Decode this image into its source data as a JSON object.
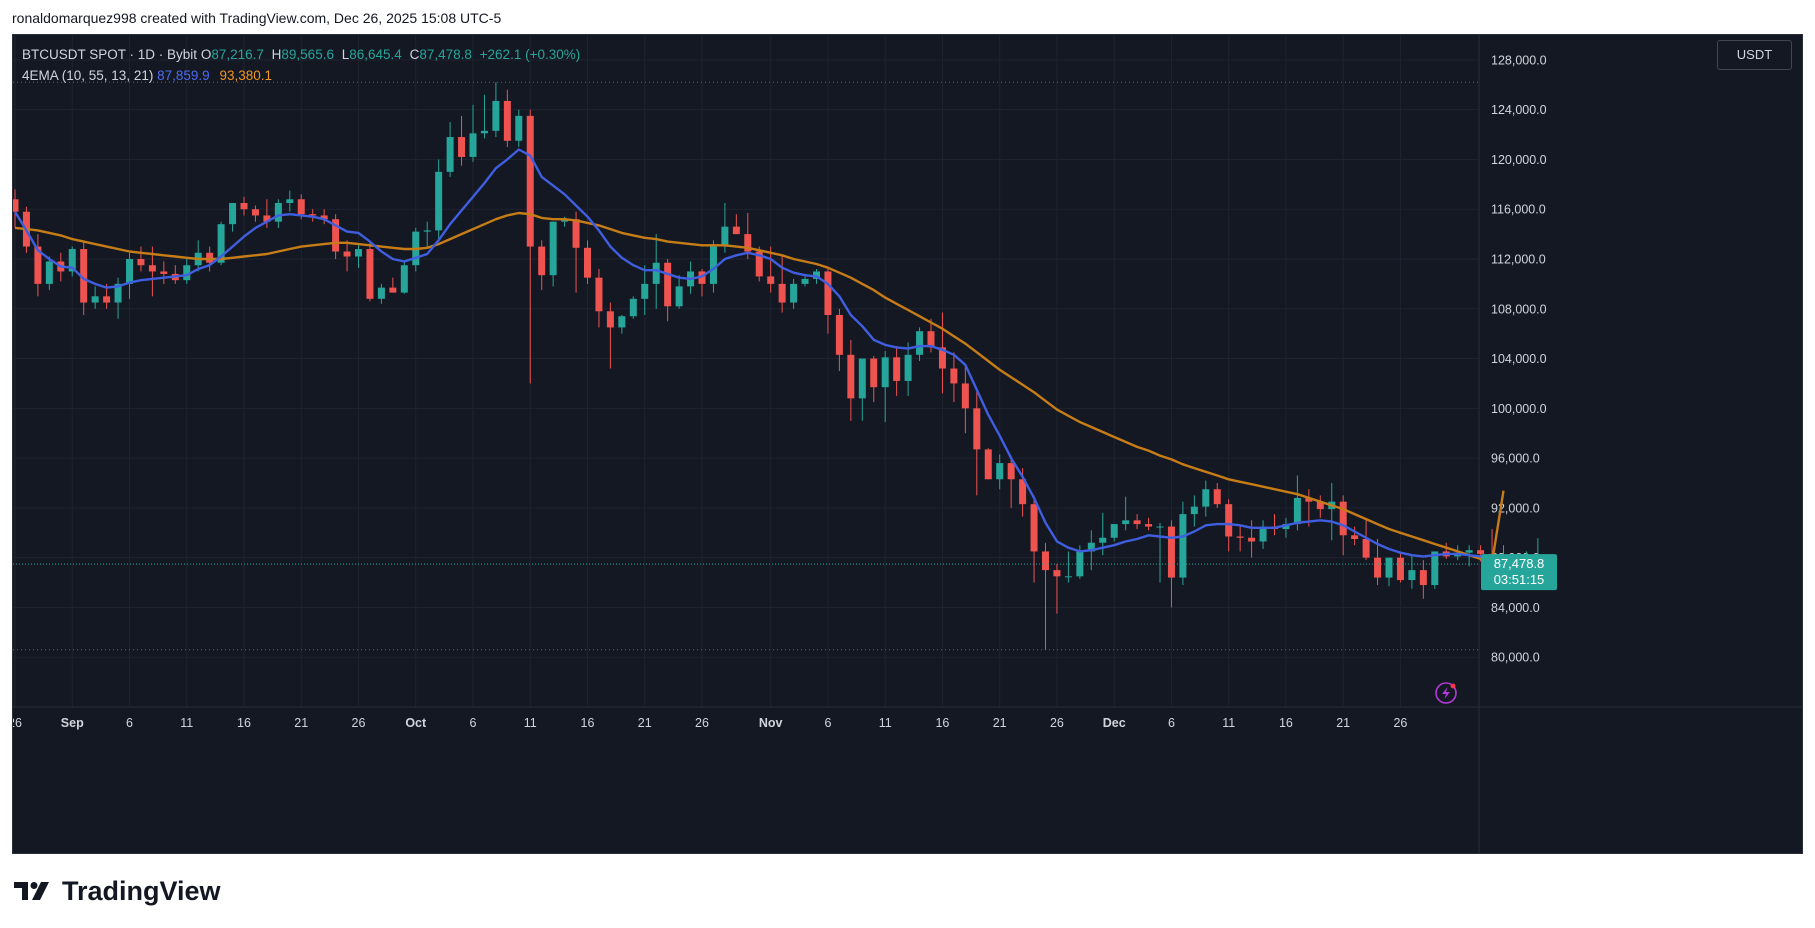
{
  "credit": "ronaldomarquez998 created with TradingView.com, Dec 26, 2025 15:08 UTC-5",
  "legend": {
    "symbol": "BTCUSDT SPOT · 1D · Bybit",
    "o_label": "O",
    "o_value": "87,216.7",
    "h_label": "H",
    "h_value": "89,565.6",
    "l_label": "L",
    "l_value": "86,645.4",
    "c_label": "C",
    "c_value": "87,478.8",
    "change": "+262.1 (+0.30%)",
    "indicator": "4EMA (10, 55, 13, 21)",
    "ema10_value": "87,859.9",
    "ema55_value": "93,380.1"
  },
  "currency_button": "USDT",
  "price_label": {
    "price": "87,478.8",
    "countdown": "03:51:15"
  },
  "brand": {
    "name": "TradingView"
  },
  "colors": {
    "background": "#141823",
    "grid": "#1f2330",
    "up": "#26a69a",
    "down": "#ef5350",
    "ema_fast": "#3f5ee0",
    "ema_slow": "#c77d17",
    "axis_text": "#d1d4dc"
  },
  "chart_data": {
    "type": "candlestick",
    "y_axis_ticks": [
      "80,000.0",
      "84,000.0",
      "88,000.0",
      "92,000.0",
      "96,000.0",
      "100,000.0",
      "104,000.0",
      "108,000.0",
      "112,000.0",
      "116,000.0",
      "120,000.0",
      "124,000.0",
      "128,000.0"
    ],
    "x_axis_ticks": [
      {
        "label": "26",
        "bar": 0,
        "month": false
      },
      {
        "label": "Sep",
        "bar": 5,
        "month": true
      },
      {
        "label": "6",
        "bar": 10,
        "month": false
      },
      {
        "label": "11",
        "bar": 15,
        "month": false
      },
      {
        "label": "16",
        "bar": 20,
        "month": false
      },
      {
        "label": "21",
        "bar": 25,
        "month": false
      },
      {
        "label": "26",
        "bar": 30,
        "month": false
      },
      {
        "label": "Oct",
        "bar": 35,
        "month": true
      },
      {
        "label": "6",
        "bar": 40,
        "month": false
      },
      {
        "label": "11",
        "bar": 45,
        "month": false
      },
      {
        "label": "16",
        "bar": 50,
        "month": false
      },
      {
        "label": "21",
        "bar": 55,
        "month": false
      },
      {
        "label": "26",
        "bar": 60,
        "month": false
      },
      {
        "label": "Nov",
        "bar": 66,
        "month": true
      },
      {
        "label": "6",
        "bar": 71,
        "month": false
      },
      {
        "label": "11",
        "bar": 76,
        "month": false
      },
      {
        "label": "16",
        "bar": 81,
        "month": false
      },
      {
        "label": "21",
        "bar": 86,
        "month": false
      },
      {
        "label": "26",
        "bar": 91,
        "month": false
      },
      {
        "label": "Dec",
        "bar": 96,
        "month": true
      },
      {
        "label": "6",
        "bar": 101,
        "month": false
      },
      {
        "label": "11",
        "bar": 106,
        "month": false
      },
      {
        "label": "16",
        "bar": 111,
        "month": false
      },
      {
        "label": "21",
        "bar": 116,
        "month": false
      },
      {
        "label": "26",
        "bar": 121,
        "month": false
      }
    ],
    "ylim": [
      76000,
      130000
    ],
    "last_price": 87478.8,
    "dotted_high": 126200,
    "dotted_low": 80600,
    "candles": [
      [
        116800,
        117600,
        114500,
        115800
      ],
      [
        115800,
        116200,
        112500,
        113000
      ],
      [
        113000,
        114000,
        109000,
        110000
      ],
      [
        110000,
        112200,
        109500,
        111800
      ],
      [
        111800,
        112500,
        110200,
        111000
      ],
      [
        111000,
        113000,
        110600,
        112800
      ],
      [
        112800,
        113500,
        107500,
        108500
      ],
      [
        108500,
        109800,
        108000,
        109000
      ],
      [
        109000,
        110000,
        108000,
        108500
      ],
      [
        108500,
        110500,
        107200,
        110000
      ],
      [
        110000,
        112500,
        108800,
        112000
      ],
      [
        112000,
        113000,
        111000,
        111500
      ],
      [
        111500,
        113000,
        109000,
        111000
      ],
      [
        111000,
        111800,
        110000,
        110800
      ],
      [
        110800,
        111500,
        110000,
        110300
      ],
      [
        110300,
        112000,
        110000,
        111500
      ],
      [
        111500,
        113500,
        111000,
        112500
      ],
      [
        112500,
        113000,
        111000,
        111700
      ],
      [
        111700,
        115000,
        111500,
        114800
      ],
      [
        114800,
        116500,
        114200,
        116500
      ],
      [
        116500,
        117000,
        115500,
        116000
      ],
      [
        116000,
        116300,
        115000,
        115500
      ],
      [
        115500,
        116800,
        114500,
        115000
      ],
      [
        115000,
        116800,
        114500,
        116500
      ],
      [
        116500,
        117500,
        115800,
        116800
      ],
      [
        116800,
        117200,
        115200,
        115600
      ],
      [
        115600,
        116000,
        115000,
        115500
      ],
      [
        115500,
        116000,
        114800,
        115200
      ],
      [
        115200,
        115600,
        112000,
        112600
      ],
      [
        112600,
        113500,
        111000,
        112200
      ],
      [
        112200,
        113200,
        111300,
        112800
      ],
      [
        112800,
        113500,
        108600,
        108800
      ],
      [
        108800,
        110000,
        108400,
        109700
      ],
      [
        109700,
        110500,
        109300,
        109300
      ],
      [
        109300,
        111800,
        109200,
        111500
      ],
      [
        111500,
        114500,
        111000,
        114200
      ],
      [
        114200,
        115000,
        113000,
        114300
      ],
      [
        114300,
        120000,
        113500,
        119000
      ],
      [
        119000,
        123000,
        118600,
        121800
      ],
      [
        121800,
        123500,
        119500,
        120200
      ],
      [
        120200,
        124400,
        119800,
        122100
      ],
      [
        122100,
        125200,
        121700,
        122300
      ],
      [
        122300,
        126200,
        121800,
        124700
      ],
      [
        124700,
        125600,
        121000,
        121500
      ],
      [
        121500,
        124000,
        121000,
        123500
      ],
      [
        123500,
        124000,
        102000,
        113000
      ],
      [
        113000,
        113500,
        109500,
        110700
      ],
      [
        110700,
        115000,
        109800,
        115000
      ],
      [
        115000,
        115400,
        114600,
        115200
      ],
      [
        115200,
        115800,
        109300,
        112900
      ],
      [
        112900,
        113500,
        110000,
        110500
      ],
      [
        110500,
        111200,
        106500,
        107800
      ],
      [
        107800,
        108500,
        103200,
        106500
      ],
      [
        106500,
        107500,
        106000,
        107400
      ],
      [
        107400,
        109000,
        107200,
        108800
      ],
      [
        108800,
        111500,
        107500,
        110000
      ],
      [
        110000,
        114000,
        108000,
        111700
      ],
      [
        111700,
        112000,
        107000,
        108200
      ],
      [
        108200,
        110700,
        108000,
        109800
      ],
      [
        109800,
        111800,
        109200,
        111000
      ],
      [
        111000,
        111200,
        109000,
        110000
      ],
      [
        110000,
        113500,
        109300,
        113000
      ],
      [
        113000,
        116500,
        112500,
        114600
      ],
      [
        114600,
        115600,
        114000,
        114000
      ],
      [
        114000,
        115700,
        112000,
        112600
      ],
      [
        112600,
        113000,
        110200,
        110600
      ],
      [
        110600,
        113000,
        109300,
        110000
      ],
      [
        110000,
        112300,
        107700,
        108500
      ],
      [
        108500,
        110400,
        108000,
        110000
      ],
      [
        110000,
        110800,
        109800,
        110400
      ],
      [
        110400,
        111200,
        110000,
        111000
      ],
      [
        111000,
        111200,
        106000,
        107500
      ],
      [
        107500,
        108000,
        103000,
        104300
      ],
      [
        104300,
        105500,
        99000,
        100800
      ],
      [
        100800,
        104000,
        99000,
        104000
      ],
      [
        104000,
        104200,
        100500,
        101700
      ],
      [
        101700,
        104600,
        98900,
        104100
      ],
      [
        104100,
        105000,
        101000,
        102200
      ],
      [
        102200,
        105300,
        101000,
        104300
      ],
      [
        104300,
        106500,
        103800,
        106200
      ],
      [
        106200,
        107200,
        104500,
        104900
      ],
      [
        104900,
        107700,
        101200,
        103200
      ],
      [
        103200,
        104500,
        100500,
        102000
      ],
      [
        102000,
        103500,
        98000,
        100000
      ],
      [
        100000,
        101500,
        93000,
        96700
      ],
      [
        96700,
        96800,
        94300,
        94300
      ],
      [
        94300,
        96300,
        93500,
        95600
      ],
      [
        95600,
        96200,
        92000,
        94300
      ],
      [
        94300,
        95200,
        91300,
        92300
      ],
      [
        92300,
        93000,
        86000,
        88500
      ],
      [
        88500,
        89200,
        80600,
        87000
      ],
      [
        87000,
        87500,
        83500,
        86500
      ],
      [
        86500,
        88500,
        86000,
        86500
      ],
      [
        86500,
        89000,
        86300,
        88500
      ],
      [
        88500,
        90200,
        87000,
        89200
      ],
      [
        89200,
        91600,
        88200,
        89600
      ],
      [
        89600,
        90700,
        89300,
        90700
      ],
      [
        90700,
        92900,
        90200,
        91000
      ],
      [
        91000,
        91500,
        90300,
        90700
      ],
      [
        90700,
        91200,
        90200,
        90500
      ],
      [
        90500,
        90800,
        86000,
        90500
      ],
      [
        90500,
        91000,
        84000,
        86400
      ],
      [
        86400,
        92500,
        85800,
        91500
      ],
      [
        91500,
        93000,
        90500,
        92100
      ],
      [
        92100,
        94200,
        91300,
        93500
      ],
      [
        93500,
        94000,
        92000,
        92300
      ],
      [
        92300,
        92700,
        88500,
        89700
      ],
      [
        89700,
        90500,
        88500,
        89600
      ],
      [
        89600,
        91000,
        88000,
        89300
      ],
      [
        89300,
        91000,
        88700,
        90500
      ],
      [
        90500,
        91500,
        89800,
        90300
      ],
      [
        90300,
        91200,
        89600,
        90700
      ],
      [
        90700,
        94600,
        90200,
        92800
      ],
      [
        92800,
        93500,
        90500,
        92500
      ],
      [
        92500,
        93000,
        91200,
        91900
      ],
      [
        91900,
        94000,
        89400,
        92500
      ],
      [
        92500,
        93000,
        88200,
        89800
      ],
      [
        89800,
        90500,
        89000,
        89500
      ],
      [
        89500,
        91000,
        87800,
        88000
      ],
      [
        88000,
        89500,
        85800,
        86400
      ],
      [
        86400,
        88000,
        85700,
        88000
      ],
      [
        88000,
        88400,
        86000,
        86200
      ],
      [
        86200,
        88200,
        85500,
        87000
      ],
      [
        87000,
        87800,
        84700,
        85800
      ],
      [
        85800,
        88500,
        85500,
        88500
      ],
      [
        88500,
        89200,
        87900,
        88100
      ],
      [
        88100,
        89000,
        87800,
        88400
      ],
      [
        88400,
        89000,
        87300,
        88600
      ],
      [
        88600,
        89000,
        87700,
        88300
      ],
      [
        88300,
        90300,
        87500,
        88100
      ],
      [
        88100,
        89000,
        86800,
        87000
      ],
      [
        87000,
        88200,
        86700,
        87200
      ],
      [
        87200,
        88500,
        86800,
        87300
      ],
      [
        87216.7,
        89565.6,
        86645.4,
        87478.8
      ]
    ],
    "ema_fast": [
      115800,
      114300,
      112700,
      112000,
      111400,
      111300,
      110400,
      110000,
      109700,
      109800,
      110100,
      110300,
      110400,
      110500,
      110600,
      110700,
      111200,
      111500,
      112200,
      113000,
      113800,
      114500,
      115000,
      115500,
      115600,
      115500,
      115400,
      115200,
      114700,
      114200,
      114100,
      113400,
      112600,
      112000,
      111800,
      112100,
      112400,
      113500,
      114800,
      115900,
      117000,
      118100,
      119300,
      120000,
      120800,
      120300,
      118600,
      117900,
      117200,
      116300,
      115400,
      114300,
      113000,
      112100,
      111500,
      111100,
      111100,
      110800,
      110500,
      110400,
      110600,
      111200,
      112000,
      112300,
      112500,
      112300,
      112000,
      111300,
      110900,
      110700,
      110600,
      110000,
      109000,
      107500,
      106600,
      105500,
      105100,
      104900,
      104800,
      105000,
      105000,
      104700,
      104300,
      103500,
      101500,
      99500,
      97800,
      96000,
      94500,
      92800,
      90800,
      89300,
      88800,
      88500,
      88600,
      88800,
      89000,
      89300,
      89500,
      89800,
      89700,
      89600,
      89700,
      90100,
      90600,
      90700,
      90700,
      90600,
      90400,
      90400,
      90400,
      90600,
      90800,
      90900,
      91000,
      90900,
      90600,
      90100,
      89600,
      89100,
      88700,
      88400,
      88200,
      88100,
      88200,
      88300,
      88300,
      88200,
      88100,
      88000,
      87860
    ],
    "ema_slow": [
      114500,
      114400,
      114300,
      114100,
      113900,
      113600,
      113400,
      113200,
      113000,
      112800,
      112600,
      112500,
      112400,
      112300,
      112200,
      112100,
      112000,
      112000,
      112000,
      112100,
      112200,
      112300,
      112400,
      112600,
      112800,
      113000,
      113100,
      113200,
      113300,
      113300,
      113200,
      113100,
      113000,
      112900,
      112800,
      112800,
      112900,
      113200,
      113600,
      114000,
      114400,
      114800,
      115200,
      115500,
      115700,
      115600,
      115300,
      115200,
      115200,
      115100,
      114900,
      114700,
      114400,
      114100,
      113900,
      113700,
      113600,
      113400,
      113300,
      113200,
      113100,
      113100,
      113100,
      113000,
      112900,
      112700,
      112500,
      112300,
      112000,
      111800,
      111600,
      111300,
      110900,
      110500,
      110000,
      109500,
      108900,
      108400,
      107900,
      107400,
      106900,
      106400,
      105800,
      105200,
      104500,
      103800,
      103100,
      102500,
      101900,
      101300,
      100600,
      99900,
      99400,
      98900,
      98500,
      98100,
      97700,
      97300,
      96900,
      96600,
      96200,
      95900,
      95500,
      95200,
      94900,
      94600,
      94300,
      94100,
      93900,
      93700,
      93500,
      93300,
      93100,
      92800,
      92500,
      92200,
      91900,
      91500,
      91100,
      90700,
      90300,
      90000,
      89700,
      89400,
      89100,
      88800,
      88500,
      88200,
      87900,
      87600,
      93380
    ]
  }
}
